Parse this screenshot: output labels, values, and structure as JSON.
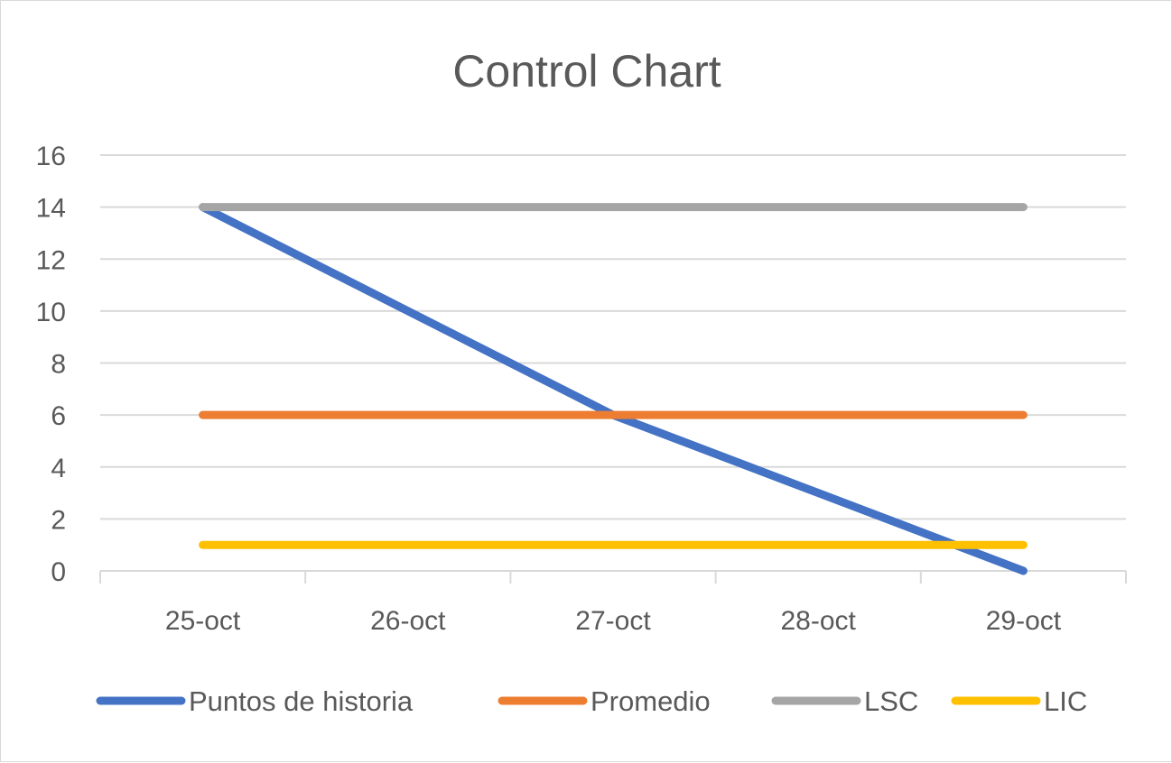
{
  "chart_data": {
    "type": "line",
    "title": "Control Chart",
    "categories": [
      "25-oct",
      "26-oct",
      "27-oct",
      "28-oct",
      "29-oct"
    ],
    "ylim": [
      0,
      16
    ],
    "yticks": [
      0,
      2,
      4,
      6,
      8,
      10,
      12,
      14,
      16
    ],
    "grid": true,
    "legend_position": "bottom",
    "series": [
      {
        "name": "Puntos de historia",
        "color": "#4472C4",
        "values": [
          14,
          10,
          6,
          3,
          0
        ]
      },
      {
        "name": "Promedio",
        "color": "#ED7D31",
        "values": [
          6,
          6,
          6,
          6,
          6
        ]
      },
      {
        "name": "LSC",
        "color": "#A5A5A5",
        "values": [
          14,
          14,
          14,
          14,
          14
        ]
      },
      {
        "name": "LIC",
        "color": "#FFC000",
        "values": [
          1,
          1,
          1,
          1,
          1
        ]
      }
    ]
  }
}
